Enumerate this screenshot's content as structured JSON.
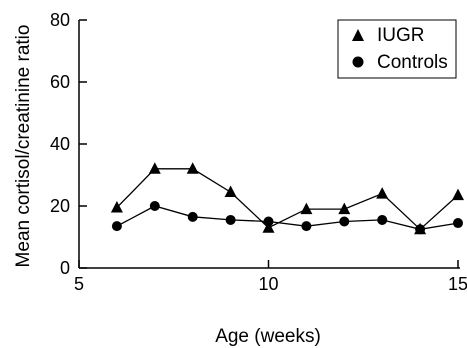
{
  "chart_data": {
    "type": "line",
    "title": "",
    "xlabel": "Age (weeks)",
    "ylabel": "Mean cortisol/creatinine ratio",
    "xlim": [
      5,
      15
    ],
    "ylim": [
      0,
      80
    ],
    "xticks": [
      5,
      10,
      15
    ],
    "yticks": [
      0,
      20,
      40,
      60,
      80
    ],
    "grid": false,
    "legend": "top-right",
    "x": [
      6,
      7,
      8,
      9,
      10,
      11,
      12,
      13,
      14,
      15
    ],
    "series": [
      {
        "name": "IUGR",
        "marker": "triangle",
        "values": [
          19.5,
          32,
          32,
          24.5,
          13,
          19,
          19,
          24,
          12.5,
          23.5
        ]
      },
      {
        "name": "Controls",
        "marker": "circle",
        "values": [
          13.5,
          20,
          16.5,
          15.5,
          15,
          13.5,
          15,
          15.5,
          12.5,
          14.5
        ]
      }
    ]
  }
}
